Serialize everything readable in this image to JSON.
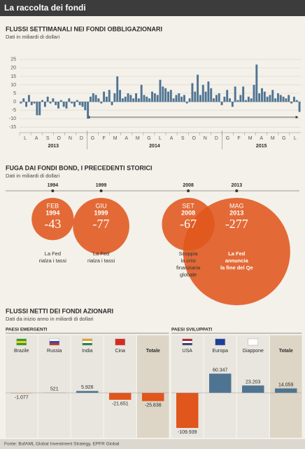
{
  "header": {
    "title": "La raccolta dei fondi"
  },
  "chart_data": [
    {
      "type": "bar",
      "title": "FLUSSI SETTIMANALI NEI FONDI OBBLIGAZIONARI",
      "subtitle": "Dati in miliardi di dollari",
      "months": [
        "L",
        "A",
        "S",
        "O",
        "N",
        "D",
        "G",
        "F",
        "M",
        "A",
        "M",
        "G",
        "L",
        "A",
        "S",
        "O",
        "N",
        "D",
        "G",
        "F",
        "M",
        "A",
        "M",
        "G",
        "L"
      ],
      "years": [
        2013,
        2014,
        2015
      ],
      "values": [
        -1,
        2,
        -3,
        4,
        -2,
        -1,
        -8,
        -8,
        1,
        -3,
        3,
        -1,
        2,
        -2,
        -4,
        1,
        -3,
        -4,
        2,
        -1,
        -3,
        1,
        -2,
        -3,
        -5,
        -10,
        3,
        5,
        4,
        2,
        -1,
        6,
        3,
        7,
        -2,
        5,
        15,
        7,
        2,
        3,
        5,
        4,
        2,
        5,
        2,
        10,
        4,
        3,
        2,
        6,
        5,
        4,
        13,
        9,
        8,
        6,
        7,
        2,
        4,
        5,
        3,
        4,
        -1,
        2,
        11,
        6,
        16,
        4,
        10,
        6,
        12,
        8,
        2,
        4,
        5,
        -2,
        3,
        7,
        2,
        -3,
        9,
        1,
        4,
        9,
        1,
        3,
        2,
        10,
        22,
        5,
        8,
        6,
        3,
        4,
        7,
        2,
        5,
        4,
        3,
        2,
        4,
        -1,
        3,
        1,
        -6
      ],
      "color": "#4f7492",
      "ylim": [
        -17,
        27
      ],
      "yticks": [
        25,
        20,
        15,
        10,
        5,
        0,
        -5,
        -10,
        -15
      ],
      "grid": true
    },
    {
      "type": "bubble",
      "title": "FUGA DAI FONDI BOND, I PRECEDENTI STORICI",
      "subtitle": "Dati in miliardi di dollari",
      "categories": [
        1994,
        1999,
        2008,
        2013
      ],
      "months": [
        "FEB",
        "GIU",
        "SET",
        "MAG"
      ],
      "values": [
        -43,
        -77,
        -67,
        -277
      ],
      "notes": [
        [
          "La Fed",
          "rialza i tassi"
        ],
        [
          "La Fed",
          "rialza i tassi"
        ],
        [
          "Scoppia",
          "la crisi",
          "finanziaria",
          "globale"
        ],
        [
          "La Fed",
          "annuncia",
          "la fine del Qe"
        ]
      ],
      "color": "#e0561c"
    },
    {
      "type": "bar",
      "title": "FLUSSI NETTI DEI FONDI AZIONARI",
      "subtitle": "Dati da inizio anno in miliardi di dollari",
      "groups": [
        {
          "name": "PAESI EMERGENTI",
          "categories": [
            "Brazile",
            "Russia",
            "India",
            "Cina"
          ],
          "values": [
            -1077,
            521,
            5926,
            -21651
          ],
          "value_labels": [
            "-1.077",
            "521",
            "5.926",
            "-21.651"
          ],
          "total_label": "Totale",
          "total_value": -25838,
          "total_value_label": "-25.838"
        },
        {
          "name": "PAESI SVILUPPATI",
          "categories": [
            "USA",
            "Europa",
            "Giappone"
          ],
          "values": [
            -109939,
            60347,
            23203
          ],
          "value_labels": [
            "-109.939",
            "60.347",
            "23.203"
          ],
          "total_label": "Totale",
          "total_value": 14059,
          "total_value_label": "14.059"
        }
      ],
      "colors": {
        "positive": "#4f7492",
        "negative": "#e0561c"
      }
    }
  ],
  "footer": {
    "source": "Fonte: BofAML Global Investment Strategy, EPFR Global"
  }
}
